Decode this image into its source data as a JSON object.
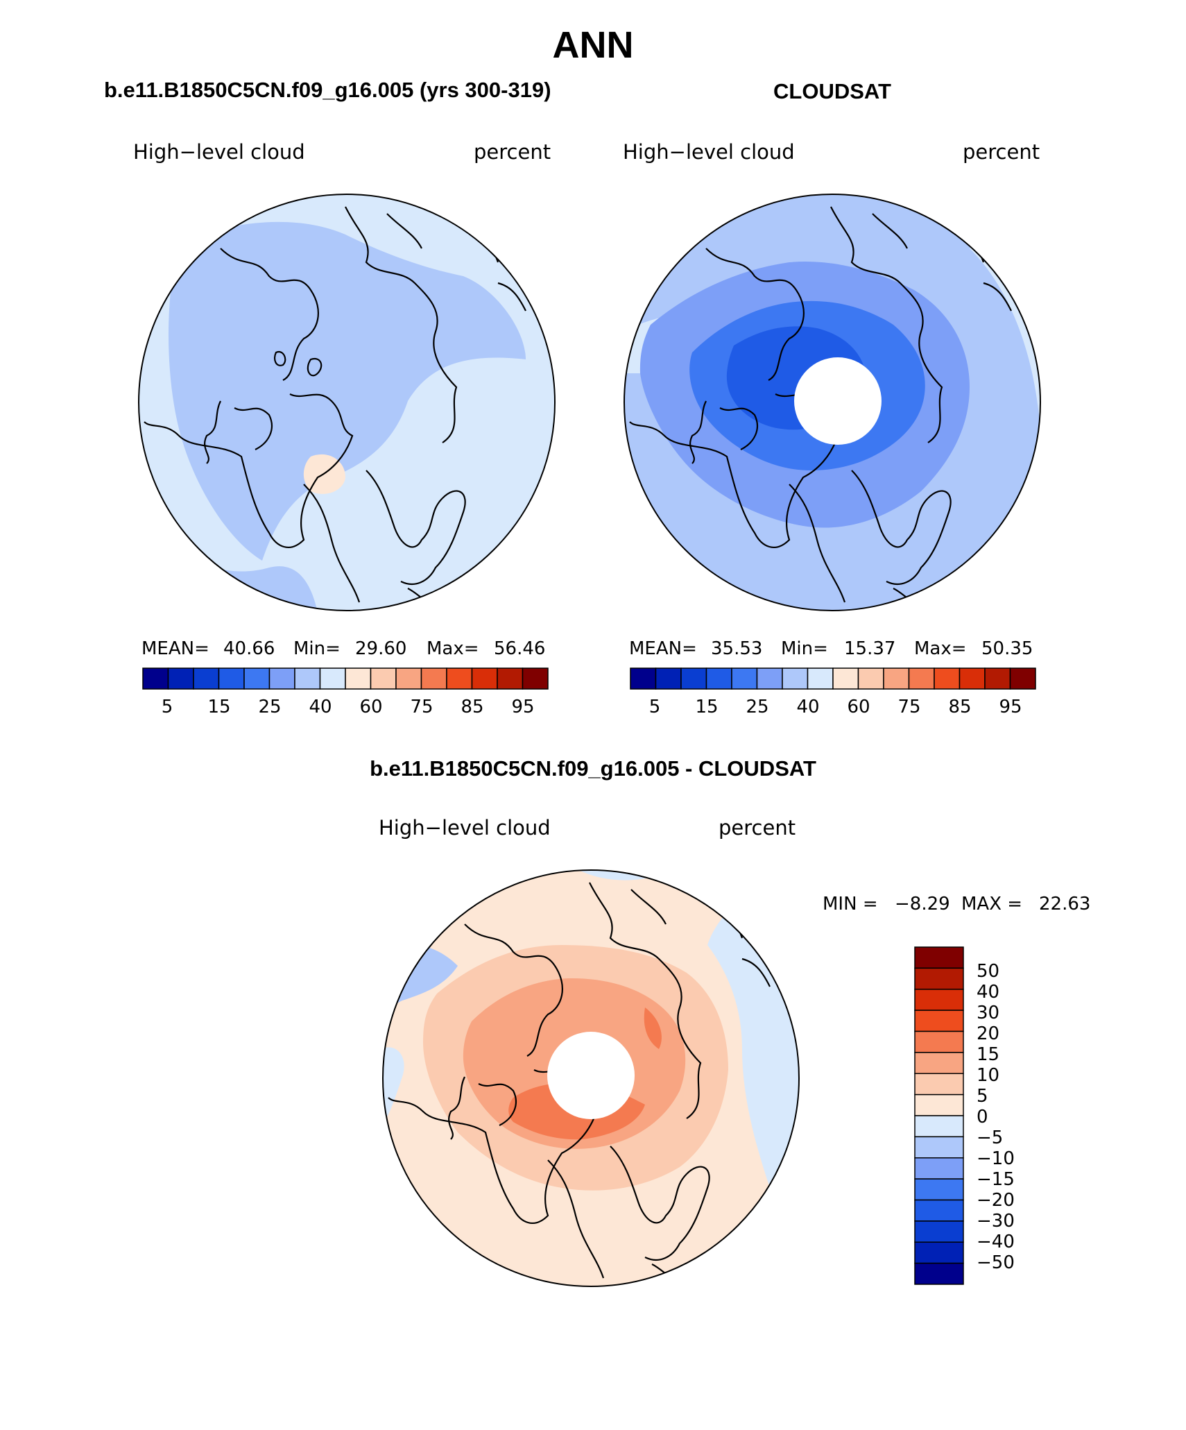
{
  "page_title": "ANN",
  "panels": [
    {
      "title": "b.e11.B1850C5CN.f09_g16.005 (yrs 300-319)",
      "variable": "High−level cloud",
      "units": "percent",
      "stats": {
        "mean_label": "MEAN=",
        "mean": "40.66",
        "min_label": "Min=",
        "min": "29.60",
        "max_label": "Max=",
        "max": "56.46"
      }
    },
    {
      "title": "CLOUDSAT",
      "variable": "High−level cloud",
      "units": "percent",
      "stats": {
        "mean_label": "MEAN=",
        "mean": "35.53",
        "min_label": "Min=",
        "min": "15.37",
        "max_label": "Max=",
        "max": "50.35"
      }
    },
    {
      "title": "b.e11.B1850C5CN.f09_g16.005 - CLOUDSAT",
      "variable": "High−level cloud",
      "units": "percent",
      "stats": {
        "min_label": "MIN =",
        "min": "−8.29",
        "max_label": "MAX =",
        "max": "22.63"
      }
    }
  ],
  "colorbar_abs": {
    "colors": [
      "#00008c",
      "#0021b5",
      "#0a3ed1",
      "#1f5be6",
      "#3d78f2",
      "#7d9ff7",
      "#aec8fa",
      "#d8e9fc",
      "#fde7d6",
      "#fbcbb0",
      "#f8a582",
      "#f47a50",
      "#ee4d1e",
      "#d92e08",
      "#b21a02",
      "#7f0000"
    ],
    "tick_labels": [
      "5",
      "15",
      "25",
      "40",
      "60",
      "75",
      "85",
      "95"
    ]
  },
  "colorbar_diff": {
    "colors": [
      "#00008c",
      "#0021b5",
      "#0a3ed1",
      "#1f5be6",
      "#3d78f2",
      "#7d9ff7",
      "#aec8fa",
      "#d8e9fc",
      "#fde7d6",
      "#fbcbb0",
      "#f8a582",
      "#f47a50",
      "#ee4d1e",
      "#d92e08",
      "#b21a02",
      "#7f0000"
    ],
    "tick_labels": [
      "50",
      "40",
      "30",
      "20",
      "15",
      "10",
      "5",
      "0",
      "−5",
      "−10",
      "−15",
      "−20",
      "−30",
      "−40",
      "−50"
    ]
  },
  "map_colors": {
    "p1_background": "#d8e9fc",
    "p1_band": "#aec8fa",
    "p1_warm": "#fde7d6",
    "p2_background": "#aec8fa",
    "p2_mid": "#7d9ff7",
    "p2_dark": "#3d78f2",
    "p2_darker": "#1f5be6",
    "p2_outer": "#d8e9fc",
    "diff_background": "#fde7d6",
    "diff_1": "#fbcbb0",
    "diff_2": "#f8a582",
    "diff_3": "#f47a50",
    "diff_cool": "#d8e9fc",
    "diff_cool2": "#aec8fa",
    "missing": "#ffffff"
  }
}
